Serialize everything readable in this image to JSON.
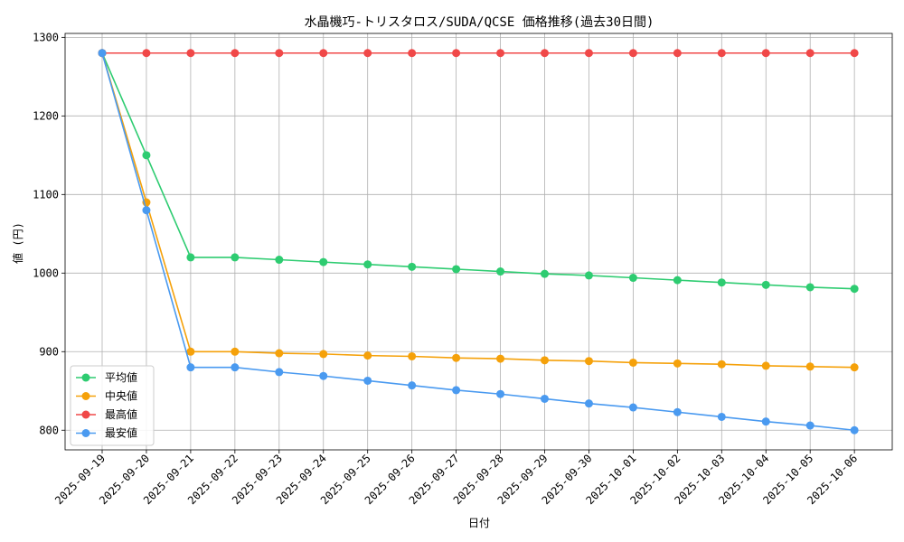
{
  "chart_data": {
    "type": "line",
    "title": "水晶機巧-トリスタロス/SUDA/QCSE 価格推移(過去30日間)",
    "xlabel": "日付",
    "ylabel": "値 (円)",
    "ylim": [
      775,
      1305
    ],
    "yticks": [
      800,
      900,
      1000,
      1100,
      1200,
      1300
    ],
    "grid": true,
    "legend_position": "lower-left",
    "categories": [
      "2025-09-19",
      "2025-09-20",
      "2025-09-21",
      "2025-09-22",
      "2025-09-23",
      "2025-09-24",
      "2025-09-25",
      "2025-09-26",
      "2025-09-27",
      "2025-09-28",
      "2025-09-29",
      "2025-09-30",
      "2025-10-01",
      "2025-10-02",
      "2025-10-03",
      "2025-10-04",
      "2025-10-05",
      "2025-10-06"
    ],
    "series": [
      {
        "name": "平均値",
        "color": "#2ecc71",
        "values": [
          1280,
          1150,
          1020,
          1020,
          1017,
          1014,
          1011,
          1008,
          1005,
          1002,
          999,
          997,
          994,
          991,
          988,
          985,
          982,
          980
        ]
      },
      {
        "name": "中央値",
        "color": "#f5a10a",
        "values": [
          1280,
          1090,
          900,
          900,
          898,
          897,
          895,
          894,
          892,
          891,
          889,
          888,
          886,
          885,
          884,
          882,
          881,
          880
        ]
      },
      {
        "name": "最高値",
        "color": "#f04848",
        "values": [
          1280,
          1280,
          1280,
          1280,
          1280,
          1280,
          1280,
          1280,
          1280,
          1280,
          1280,
          1280,
          1280,
          1280,
          1280,
          1280,
          1280,
          1280
        ]
      },
      {
        "name": "最安値",
        "color": "#4a9af0",
        "values": [
          1280,
          1080,
          880,
          880,
          874,
          869,
          863,
          857,
          851,
          846,
          840,
          834,
          829,
          823,
          817,
          811,
          806,
          800
        ]
      }
    ]
  }
}
